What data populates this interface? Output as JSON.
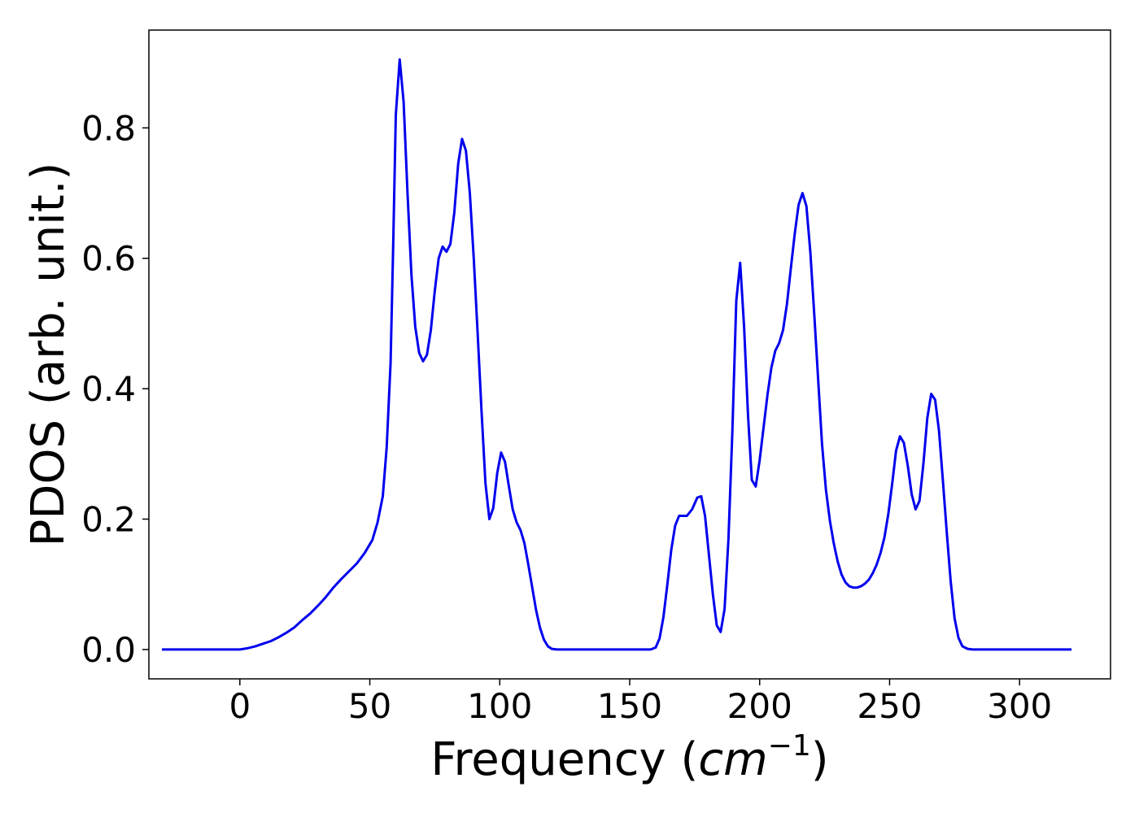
{
  "chart_data": {
    "type": "line",
    "title": "",
    "xlabel": "Frequency (",
    "xlabel_math_base": "cm",
    "xlabel_math_sup": "−1",
    "xlabel_close": ")",
    "ylabel": "PDOS (arb. unit.)",
    "xlim": [
      -35,
      335
    ],
    "ylim": [
      -0.045,
      0.95
    ],
    "xticks": [
      0,
      50,
      100,
      150,
      200,
      250,
      300
    ],
    "xtick_labels": [
      "0",
      "50",
      "100",
      "150",
      "200",
      "250",
      "300"
    ],
    "yticks": [
      0.0,
      0.2,
      0.4,
      0.6,
      0.8
    ],
    "ytick_labels": [
      "0.0",
      "0.2",
      "0.4",
      "0.6",
      "0.8"
    ],
    "grid": false,
    "legend": "none",
    "series": [
      {
        "color": "#0000ee",
        "points": [
          [
            -30,
            0
          ],
          [
            -20,
            0
          ],
          [
            -10,
            0
          ],
          [
            0,
            0
          ],
          [
            3,
            0.002
          ],
          [
            6,
            0.005
          ],
          [
            9,
            0.009
          ],
          [
            12,
            0.013
          ],
          [
            15,
            0.019
          ],
          [
            18,
            0.026
          ],
          [
            21,
            0.034
          ],
          [
            24,
            0.045
          ],
          [
            27,
            0.055
          ],
          [
            30,
            0.067
          ],
          [
            33,
            0.08
          ],
          [
            36,
            0.095
          ],
          [
            39,
            0.108
          ],
          [
            42,
            0.12
          ],
          [
            45,
            0.132
          ],
          [
            48,
            0.148
          ],
          [
            51,
            0.168
          ],
          [
            53,
            0.195
          ],
          [
            55,
            0.235
          ],
          [
            56.5,
            0.31
          ],
          [
            58,
            0.44
          ],
          [
            59,
            0.62
          ],
          [
            60,
            0.82
          ],
          [
            61.5,
            0.905
          ],
          [
            63,
            0.84
          ],
          [
            64.5,
            0.7
          ],
          [
            66,
            0.575
          ],
          [
            67.5,
            0.495
          ],
          [
            69,
            0.455
          ],
          [
            70.5,
            0.442
          ],
          [
            72,
            0.452
          ],
          [
            73.5,
            0.49
          ],
          [
            75,
            0.55
          ],
          [
            76.5,
            0.6
          ],
          [
            78,
            0.618
          ],
          [
            79.5,
            0.61
          ],
          [
            81,
            0.622
          ],
          [
            82.5,
            0.67
          ],
          [
            84,
            0.745
          ],
          [
            85.5,
            0.783
          ],
          [
            87,
            0.765
          ],
          [
            88.5,
            0.7
          ],
          [
            90,
            0.6
          ],
          [
            91.5,
            0.485
          ],
          [
            93,
            0.365
          ],
          [
            94.5,
            0.255
          ],
          [
            96,
            0.2
          ],
          [
            97.5,
            0.217
          ],
          [
            99,
            0.27
          ],
          [
            100.5,
            0.302
          ],
          [
            102,
            0.288
          ],
          [
            103.5,
            0.25
          ],
          [
            105,
            0.215
          ],
          [
            106.5,
            0.195
          ],
          [
            108,
            0.183
          ],
          [
            109.5,
            0.163
          ],
          [
            111,
            0.13
          ],
          [
            112.5,
            0.095
          ],
          [
            114,
            0.06
          ],
          [
            115.5,
            0.033
          ],
          [
            117,
            0.015
          ],
          [
            118.5,
            0.005
          ],
          [
            120,
            0.001
          ],
          [
            122,
            0
          ],
          [
            130,
            0
          ],
          [
            140,
            0
          ],
          [
            150,
            0
          ],
          [
            158,
            0
          ],
          [
            160,
            0.003
          ],
          [
            161.5,
            0.017
          ],
          [
            163,
            0.05
          ],
          [
            164.5,
            0.1
          ],
          [
            166,
            0.153
          ],
          [
            167.5,
            0.19
          ],
          [
            169,
            0.205
          ],
          [
            172,
            0.205
          ],
          [
            174,
            0.215
          ],
          [
            176,
            0.233
          ],
          [
            177.5,
            0.235
          ],
          [
            179,
            0.205
          ],
          [
            180.5,
            0.145
          ],
          [
            182,
            0.085
          ],
          [
            183.5,
            0.037
          ],
          [
            185,
            0.027
          ],
          [
            186.5,
            0.062
          ],
          [
            188,
            0.17
          ],
          [
            189.5,
            0.335
          ],
          [
            191,
            0.535
          ],
          [
            192.5,
            0.593
          ],
          [
            194,
            0.495
          ],
          [
            195.5,
            0.36
          ],
          [
            197,
            0.26
          ],
          [
            198.5,
            0.25
          ],
          [
            200,
            0.29
          ],
          [
            201.5,
            0.34
          ],
          [
            203,
            0.39
          ],
          [
            204.5,
            0.432
          ],
          [
            206,
            0.458
          ],
          [
            207.5,
            0.47
          ],
          [
            209,
            0.49
          ],
          [
            210.5,
            0.53
          ],
          [
            212,
            0.585
          ],
          [
            213.5,
            0.638
          ],
          [
            215,
            0.682
          ],
          [
            216.5,
            0.7
          ],
          [
            218,
            0.68
          ],
          [
            219.5,
            0.61
          ],
          [
            221,
            0.515
          ],
          [
            222.5,
            0.415
          ],
          [
            224,
            0.315
          ],
          [
            225.5,
            0.245
          ],
          [
            227,
            0.198
          ],
          [
            228.5,
            0.163
          ],
          [
            230,
            0.135
          ],
          [
            231.5,
            0.115
          ],
          [
            233,
            0.103
          ],
          [
            234.5,
            0.097
          ],
          [
            236,
            0.095
          ],
          [
            237.5,
            0.095
          ],
          [
            239,
            0.097
          ],
          [
            240.5,
            0.101
          ],
          [
            242,
            0.107
          ],
          [
            243.5,
            0.117
          ],
          [
            245,
            0.13
          ],
          [
            246.5,
            0.148
          ],
          [
            248,
            0.172
          ],
          [
            249.5,
            0.208
          ],
          [
            251,
            0.255
          ],
          [
            252.5,
            0.305
          ],
          [
            254,
            0.327
          ],
          [
            255.5,
            0.317
          ],
          [
            257,
            0.282
          ],
          [
            258.5,
            0.238
          ],
          [
            260,
            0.215
          ],
          [
            261.5,
            0.228
          ],
          [
            263,
            0.285
          ],
          [
            264.5,
            0.355
          ],
          [
            266,
            0.392
          ],
          [
            267.5,
            0.383
          ],
          [
            269,
            0.335
          ],
          [
            270.5,
            0.26
          ],
          [
            272,
            0.18
          ],
          [
            273.5,
            0.105
          ],
          [
            275,
            0.048
          ],
          [
            276.5,
            0.018
          ],
          [
            278,
            0.005
          ],
          [
            280,
            0.001
          ],
          [
            282,
            0
          ],
          [
            290,
            0
          ],
          [
            300,
            0
          ],
          [
            310,
            0
          ],
          [
            320,
            0
          ]
        ]
      }
    ]
  }
}
